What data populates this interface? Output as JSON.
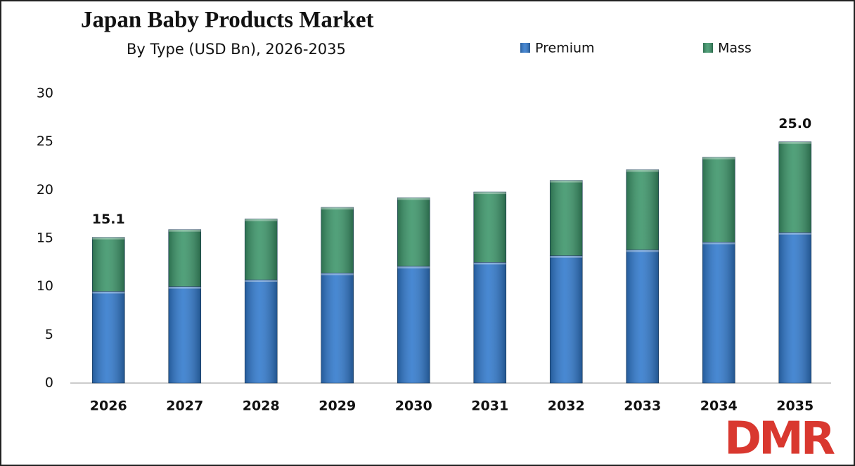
{
  "chart_data": {
    "type": "stacked_bar",
    "title": "Japan Baby Products Market",
    "subtitle": "By Type (USD Bn), 2026-2035",
    "categories": [
      "2026",
      "2027",
      "2028",
      "2029",
      "2030",
      "2031",
      "2032",
      "2033",
      "2034",
      "2035"
    ],
    "series": [
      {
        "name": "Premium",
        "color": "#2f78cc",
        "values": [
          9.5,
          10.0,
          10.7,
          11.4,
          12.1,
          12.5,
          13.2,
          13.8,
          14.6,
          15.6
        ]
      },
      {
        "name": "Mass",
        "color": "#3a9468",
        "values": [
          5.6,
          5.9,
          6.3,
          6.8,
          7.1,
          7.3,
          7.8,
          8.3,
          8.8,
          9.4
        ]
      }
    ],
    "annotations": [
      {
        "category": "2026",
        "value": 15.1,
        "label": "15.1"
      },
      {
        "category": "2035",
        "value": 25,
        "label": "25.0"
      }
    ],
    "ylim": [
      0,
      30
    ],
    "yticks": [
      0,
      5,
      10,
      15,
      20,
      25,
      30
    ],
    "grid": false,
    "legend": "top",
    "logo": "DMR"
  }
}
